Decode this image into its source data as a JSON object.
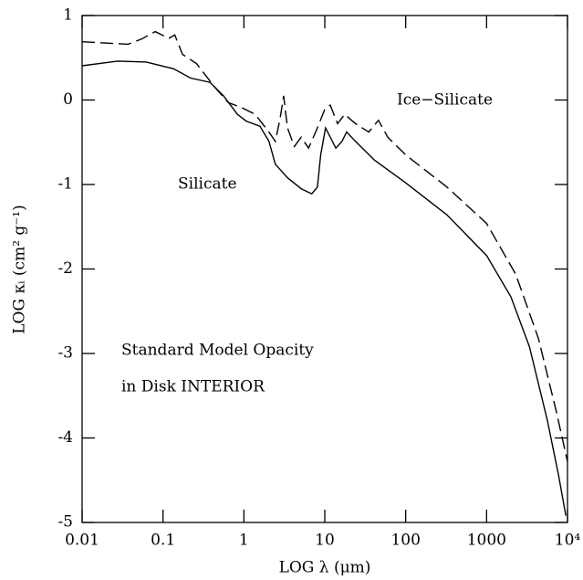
{
  "chart_data": {
    "type": "line",
    "xlabel": "LOG λ (μm)",
    "ylabel": "LOG κᵢ (cm² g⁻¹)",
    "xscale": "log",
    "xlim": [
      0.01,
      10000
    ],
    "ylim": [
      -5,
      1
    ],
    "xticks": [
      0.01,
      0.1,
      1,
      10,
      100,
      1000,
      {
        "value": 10000,
        "label": "10⁴"
      }
    ],
    "yticks": [
      -5,
      -4,
      -3,
      -2,
      -1,
      0,
      1
    ],
    "annotations": [
      "Standard Model Opacity",
      "in Disk INTERIOR"
    ],
    "series": [
      {
        "name": "Silicate",
        "color": "#000000",
        "dash": "solid",
        "x": [
          0.01,
          0.028,
          0.062,
          0.135,
          0.22,
          0.38,
          0.56,
          0.83,
          1.07,
          1.58,
          2.04,
          2.45,
          3.46,
          5.1,
          6.9,
          8.1,
          8.9,
          10.2,
          11.7,
          13.7,
          16.3,
          18.6,
          24,
          41,
          100,
          324,
          1000,
          2000,
          3390,
          5640,
          7760,
          9550
        ],
        "values": [
          0.405,
          0.46,
          0.45,
          0.37,
          0.26,
          0.21,
          0.05,
          -0.17,
          -0.25,
          -0.31,
          -0.49,
          -0.76,
          -0.92,
          -1.05,
          -1.11,
          -1.03,
          -0.65,
          -0.33,
          -0.44,
          -0.57,
          -0.49,
          -0.38,
          -0.49,
          -0.71,
          -0.98,
          -1.36,
          -1.84,
          -2.33,
          -2.92,
          -3.79,
          -4.44,
          -4.92
        ]
      },
      {
        "name": "Ice−Silicate",
        "color": "#000000",
        "dash": "dashed",
        "x": [
          0.01,
          0.037,
          0.054,
          0.08,
          0.118,
          0.14,
          0.174,
          0.26,
          0.43,
          0.64,
          0.94,
          1.38,
          2.04,
          2.45,
          2.8,
          3.1,
          3.46,
          4.2,
          5.1,
          6.3,
          8.1,
          10,
          11.7,
          14.4,
          17.6,
          24,
          35,
          46,
          60,
          100,
          324,
          1000,
          2290,
          4370,
          7240,
          10000
        ],
        "values": [
          0.69,
          0.66,
          0.72,
          0.81,
          0.73,
          0.77,
          0.54,
          0.43,
          0.16,
          -0.03,
          -0.09,
          -0.17,
          -0.38,
          -0.49,
          -0.22,
          0.05,
          -0.33,
          -0.55,
          -0.44,
          -0.57,
          -0.33,
          -0.11,
          -0.06,
          -0.28,
          -0.17,
          -0.28,
          -0.38,
          -0.24,
          -0.44,
          -0.65,
          -1.03,
          -1.46,
          -2.06,
          -2.82,
          -3.68,
          -4.28
        ]
      }
    ]
  }
}
